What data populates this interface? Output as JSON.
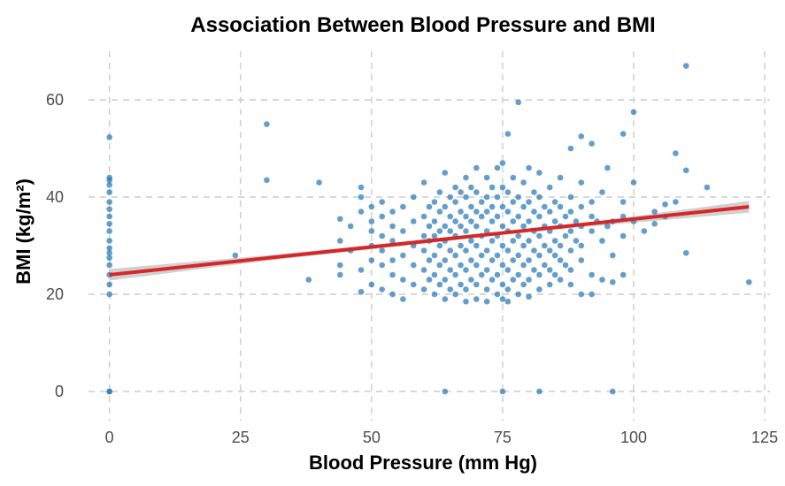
{
  "chart_data": {
    "type": "scatter",
    "title": "Association Between Blood Pressure and BMI",
    "xlabel": "Blood Pressure (mm Hg)",
    "ylabel": "BMI (kg/m²)",
    "xlim": [
      -4,
      126
    ],
    "ylim": [
      -6,
      70
    ],
    "xticks": [
      0,
      25,
      50,
      75,
      100,
      125
    ],
    "yticks": [
      0,
      20,
      40,
      60
    ],
    "grid": true,
    "legend": "none",
    "colors": {
      "points": "#2878b5",
      "trend": "#d62728",
      "band": "#c8c8c8"
    },
    "trend": {
      "x": [
        0,
        122
      ],
      "y": [
        24.0,
        38.0
      ],
      "band": [
        [
          0,
          22.8,
          25.2
        ],
        [
          30,
          26.9,
          28.0
        ],
        [
          60,
          30.4,
          31.2
        ],
        [
          72,
          31.9,
          32.5
        ],
        [
          90,
          33.8,
          34.6
        ],
        [
          122,
          36.8,
          39.2
        ]
      ]
    },
    "points": [
      [
        0,
        0
      ],
      [
        0,
        0
      ],
      [
        0,
        20
      ],
      [
        0,
        22
      ],
      [
        0,
        24
      ],
      [
        0,
        26
      ],
      [
        0,
        27.5
      ],
      [
        0,
        28.5
      ],
      [
        0,
        29.5
      ],
      [
        0,
        31
      ],
      [
        0,
        33
      ],
      [
        0,
        34.5
      ],
      [
        0,
        36
      ],
      [
        0,
        37.5
      ],
      [
        0,
        39
      ],
      [
        0,
        41
      ],
      [
        0,
        42.5
      ],
      [
        0,
        43.5
      ],
      [
        0,
        44
      ],
      [
        0,
        52.3
      ],
      [
        24,
        28
      ],
      [
        30,
        55
      ],
      [
        30,
        43.5
      ],
      [
        38,
        23
      ],
      [
        40,
        43
      ],
      [
        44,
        24
      ],
      [
        44,
        26
      ],
      [
        44,
        31
      ],
      [
        44,
        35.5
      ],
      [
        46,
        29
      ],
      [
        46,
        34
      ],
      [
        48,
        20.5
      ],
      [
        48,
        25
      ],
      [
        48,
        37
      ],
      [
        48,
        40
      ],
      [
        48,
        42
      ],
      [
        50,
        22
      ],
      [
        50,
        27
      ],
      [
        50,
        30
      ],
      [
        50,
        33
      ],
      [
        50,
        35
      ],
      [
        50,
        38
      ],
      [
        52,
        21
      ],
      [
        52,
        26
      ],
      [
        52,
        29
      ],
      [
        52,
        32
      ],
      [
        52,
        36
      ],
      [
        52,
        39
      ],
      [
        54,
        20
      ],
      [
        54,
        24
      ],
      [
        54,
        27
      ],
      [
        54,
        31
      ],
      [
        54,
        34
      ],
      [
        54,
        37
      ],
      [
        56,
        19
      ],
      [
        56,
        23
      ],
      [
        56,
        28
      ],
      [
        56,
        33
      ],
      [
        56,
        38
      ],
      [
        58,
        22
      ],
      [
        58,
        26
      ],
      [
        58,
        30
      ],
      [
        58,
        35
      ],
      [
        58,
        40
      ],
      [
        60,
        21
      ],
      [
        60,
        25
      ],
      [
        60,
        29
      ],
      [
        60,
        32
      ],
      [
        60,
        36
      ],
      [
        60,
        43
      ],
      [
        61,
        23
      ],
      [
        61,
        27
      ],
      [
        61,
        31
      ],
      [
        61,
        34
      ],
      [
        61,
        38
      ],
      [
        62,
        20
      ],
      [
        62,
        24
      ],
      [
        62,
        28
      ],
      [
        62,
        32
      ],
      [
        62,
        35
      ],
      [
        62,
        39
      ],
      [
        63,
        22
      ],
      [
        63,
        26
      ],
      [
        63,
        30
      ],
      [
        63,
        33
      ],
      [
        63,
        37
      ],
      [
        63,
        41
      ],
      [
        64,
        0
      ],
      [
        64,
        19
      ],
      [
        64,
        23
      ],
      [
        64,
        27
      ],
      [
        64,
        31
      ],
      [
        64,
        34
      ],
      [
        64,
        38
      ],
      [
        64,
        45
      ],
      [
        65,
        21
      ],
      [
        65,
        25
      ],
      [
        65,
        29
      ],
      [
        65,
        33
      ],
      [
        65,
        36
      ],
      [
        65,
        40
      ],
      [
        66,
        20
      ],
      [
        66,
        24
      ],
      [
        66,
        28
      ],
      [
        66,
        32
      ],
      [
        66,
        35
      ],
      [
        66,
        39
      ],
      [
        66,
        42
      ],
      [
        67,
        22
      ],
      [
        67,
        26
      ],
      [
        67,
        30
      ],
      [
        67,
        34
      ],
      [
        67,
        37
      ],
      [
        67,
        41
      ],
      [
        68,
        18.5
      ],
      [
        68,
        21
      ],
      [
        68,
        25
      ],
      [
        68,
        29
      ],
      [
        68,
        33
      ],
      [
        68,
        36
      ],
      [
        68,
        40
      ],
      [
        68,
        44
      ],
      [
        69,
        23
      ],
      [
        69,
        27
      ],
      [
        69,
        31
      ],
      [
        69,
        35
      ],
      [
        69,
        38
      ],
      [
        69,
        42
      ],
      [
        70,
        19
      ],
      [
        70,
        22
      ],
      [
        70,
        26
      ],
      [
        70,
        30
      ],
      [
        70,
        34
      ],
      [
        70,
        37
      ],
      [
        70,
        41
      ],
      [
        70,
        46
      ],
      [
        71,
        24
      ],
      [
        71,
        28
      ],
      [
        71,
        32
      ],
      [
        71,
        36
      ],
      [
        71,
        39
      ],
      [
        72,
        18.5
      ],
      [
        72,
        21
      ],
      [
        72,
        25
      ],
      [
        72,
        29
      ],
      [
        72,
        33
      ],
      [
        72,
        37
      ],
      [
        72,
        40
      ],
      [
        72,
        44
      ],
      [
        73,
        23
      ],
      [
        73,
        27
      ],
      [
        73,
        31
      ],
      [
        73,
        35
      ],
      [
        73,
        38
      ],
      [
        73,
        42
      ],
      [
        74,
        20
      ],
      [
        74,
        24
      ],
      [
        74,
        28
      ],
      [
        74,
        32
      ],
      [
        74,
        36
      ],
      [
        74,
        40
      ],
      [
        74,
        46
      ],
      [
        75,
        0
      ],
      [
        75,
        19
      ],
      [
        75,
        22
      ],
      [
        75,
        26
      ],
      [
        75,
        30
      ],
      [
        75,
        34
      ],
      [
        75,
        38
      ],
      [
        75,
        42
      ],
      [
        75,
        47
      ],
      [
        76,
        18.5
      ],
      [
        76,
        21
      ],
      [
        76,
        25
      ],
      [
        76,
        29
      ],
      [
        76,
        33
      ],
      [
        76,
        37
      ],
      [
        76,
        41
      ],
      [
        76,
        53
      ],
      [
        77,
        23
      ],
      [
        77,
        27
      ],
      [
        77,
        31
      ],
      [
        77,
        35
      ],
      [
        77,
        39
      ],
      [
        77,
        44
      ],
      [
        78,
        20
      ],
      [
        78,
        24
      ],
      [
        78,
        28
      ],
      [
        78,
        32
      ],
      [
        78,
        36
      ],
      [
        78,
        40
      ],
      [
        78,
        59.5
      ],
      [
        79,
        22
      ],
      [
        79,
        26
      ],
      [
        79,
        30
      ],
      [
        79,
        34
      ],
      [
        79,
        38
      ],
      [
        79,
        43
      ],
      [
        80,
        19.5
      ],
      [
        80,
        23
      ],
      [
        80,
        27
      ],
      [
        80,
        31
      ],
      [
        80,
        35
      ],
      [
        80,
        39
      ],
      [
        80,
        46
      ],
      [
        81,
        25
      ],
      [
        81,
        29
      ],
      [
        81,
        33
      ],
      [
        81,
        37
      ],
      [
        81,
        41
      ],
      [
        82,
        0
      ],
      [
        82,
        21
      ],
      [
        82,
        24
      ],
      [
        82,
        28
      ],
      [
        82,
        32
      ],
      [
        82,
        36
      ],
      [
        82,
        40
      ],
      [
        82,
        45
      ],
      [
        83,
        26
      ],
      [
        83,
        30
      ],
      [
        83,
        34
      ],
      [
        83,
        38
      ],
      [
        84,
        22
      ],
      [
        84,
        25
      ],
      [
        84,
        29
      ],
      [
        84,
        33
      ],
      [
        84,
        37
      ],
      [
        84,
        42
      ],
      [
        85,
        24
      ],
      [
        85,
        28
      ],
      [
        85,
        31
      ],
      [
        85,
        35
      ],
      [
        85,
        39
      ],
      [
        86,
        23
      ],
      [
        86,
        27
      ],
      [
        86,
        30
      ],
      [
        86,
        34
      ],
      [
        86,
        38
      ],
      [
        86,
        44
      ],
      [
        87,
        26
      ],
      [
        87,
        32
      ],
      [
        87,
        36
      ],
      [
        88,
        22
      ],
      [
        88,
        25
      ],
      [
        88,
        29
      ],
      [
        88,
        33
      ],
      [
        88,
        37
      ],
      [
        88,
        40
      ],
      [
        88,
        50
      ],
      [
        89,
        31
      ],
      [
        89,
        35
      ],
      [
        90,
        20
      ],
      [
        90,
        27
      ],
      [
        90,
        30
      ],
      [
        90,
        34
      ],
      [
        90,
        38
      ],
      [
        90,
        43
      ],
      [
        90,
        52.5
      ],
      [
        92,
        20
      ],
      [
        92,
        24
      ],
      [
        92,
        33
      ],
      [
        92,
        36
      ],
      [
        92,
        39
      ],
      [
        92,
        51
      ],
      [
        93,
        35
      ],
      [
        94,
        23
      ],
      [
        94,
        31
      ],
      [
        94,
        41
      ],
      [
        95,
        34
      ],
      [
        95,
        46
      ],
      [
        96,
        0
      ],
      [
        96,
        22.5
      ],
      [
        96,
        28
      ],
      [
        96,
        35
      ],
      [
        98,
        24
      ],
      [
        98,
        32
      ],
      [
        98,
        36
      ],
      [
        98,
        39
      ],
      [
        98,
        53
      ],
      [
        100,
        35
      ],
      [
        100,
        43
      ],
      [
        100,
        57.5
      ],
      [
        102,
        33
      ],
      [
        104,
        34.5
      ],
      [
        104,
        37
      ],
      [
        106,
        36
      ],
      [
        106,
        38.5
      ],
      [
        108,
        39
      ],
      [
        108,
        49
      ],
      [
        110,
        28.5
      ],
      [
        110,
        45.5
      ],
      [
        110,
        67
      ],
      [
        114,
        42
      ],
      [
        122,
        22.5
      ]
    ]
  }
}
